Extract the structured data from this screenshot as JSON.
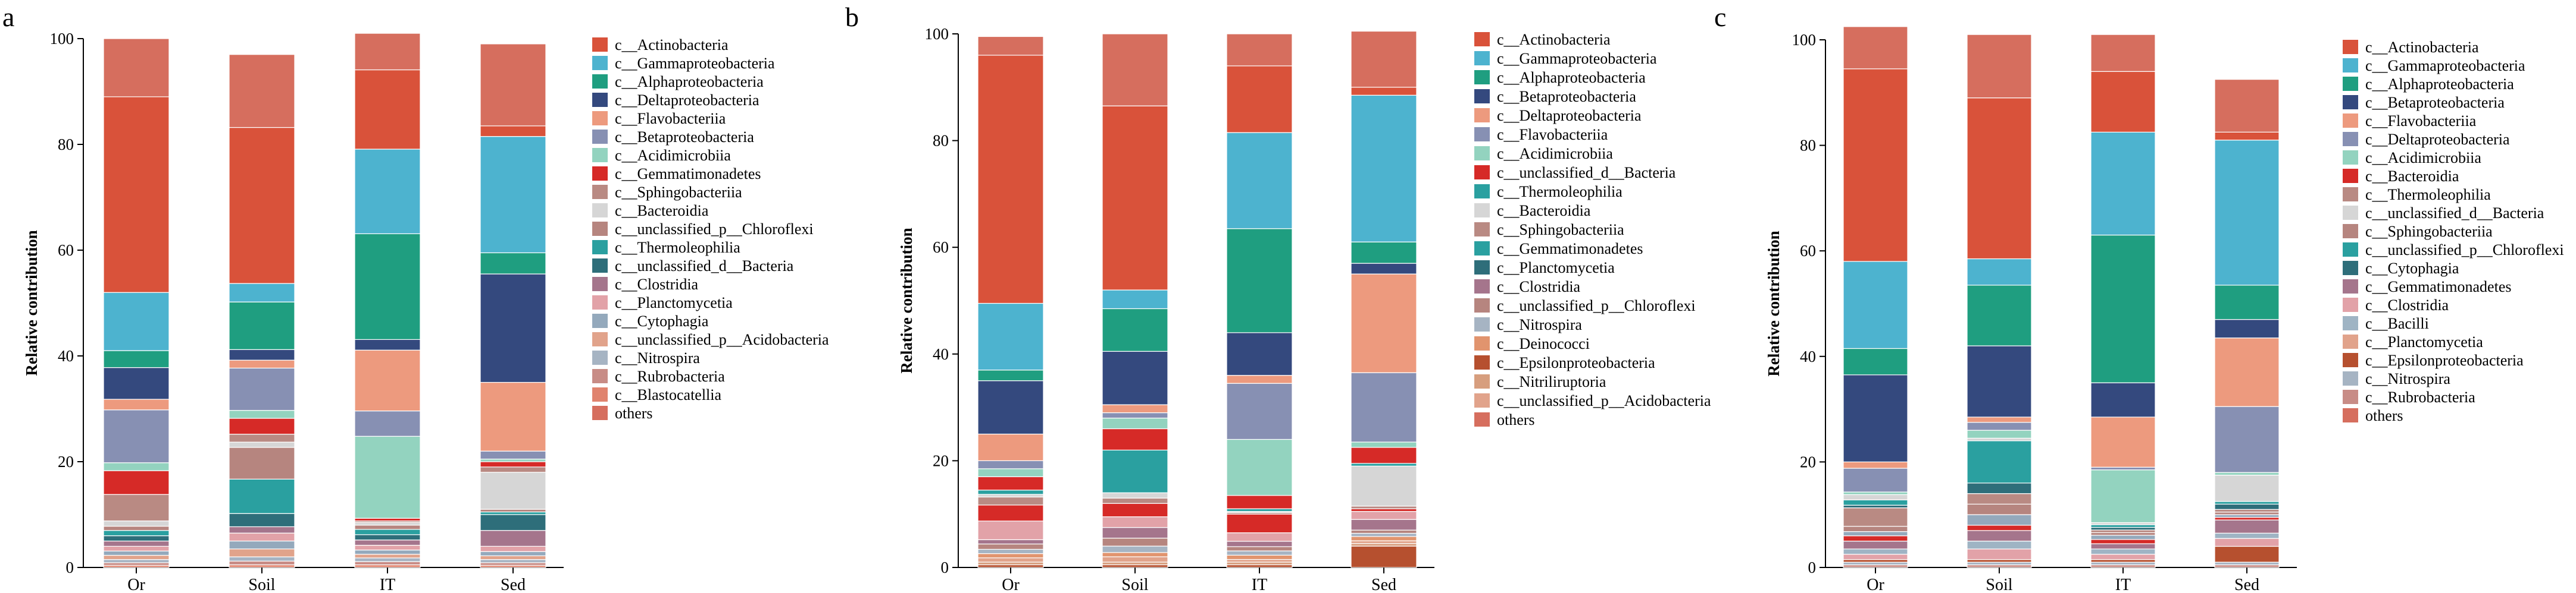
{
  "colors": {
    "Actinobacteria": "#D9523A",
    "Gammaproteobacteria": "#4DB3CF",
    "Alphaproteobacteria": "#1F9E80",
    "Deltaproteobacteria": "#ED9A7E",
    "Betaproteobacteria": "#34497E",
    "Flavobacteriia": "#8790B3",
    "Acidimicrobiia": "#93D3BF",
    "Gemmatimonadetes": "#D62A27",
    "Sphingobacteriia": "#B98A83",
    "Bacteroidia": "#D6D6D6",
    "unclassified_p_Chloroflexi": "#B6857F",
    "Thermoleophilia": "#2AA0A0",
    "unclassified_d_Bacteria": "#2E6E7A",
    "Clostridia": "#A5758C",
    "Planctomycetia": "#E2A2A8",
    "Cytophagia": "#94A9BC",
    "unclassified_p_Acidobacteria": "#E1A38B",
    "Nitrospira": "#A6B4C3",
    "Rubrobacteria": "#C88C86",
    "Blastocatellia": "#E0836E",
    "Deinococci": "#E1946E",
    "Epsilonproteobacteria": "#B6502F",
    "Nitriliruptoria": "#D79E7E",
    "Bacilli": "#9FB4C4",
    "others": "#D66E5E"
  },
  "chart_data": [
    {
      "type": "bar",
      "panel_letter": "a",
      "ylabel": "Relative contribution",
      "ylim": [
        0,
        100
      ],
      "yticks": [
        0,
        20,
        40,
        60,
        80,
        100
      ],
      "categories": [
        "Or",
        "Soil",
        "IT",
        "Sed"
      ],
      "legend_labels": [
        "c__Actinobacteria",
        "c__Gammaproteobacteria",
        "c__Alphaproteobacteria",
        "c__Deltaproteobacteria",
        "c__Flavobacteriia",
        "c__Betaproteobacteria",
        "c__Acidimicrobiia",
        "c__Gemmatimonadetes",
        "c__Sphingobacteriia",
        "c__Bacteroidia",
        "c__unclassified_p__Chloroflexi",
        "c__Thermoleophilia",
        "c__unclassified_d__Bacteria",
        "c__Clostridia",
        "c__Planctomycetia",
        "c__Cytophagia",
        "c__unclassified_p__Acidobacteria",
        "c__Nitrospira",
        "c__Rubrobacteria",
        "c__Blastocatellia",
        "others"
      ],
      "series": [
        {
          "name": "Blastocatellia",
          "color_key": "Blastocatellia",
          "values": [
            0.4,
            0.5,
            0.5,
            0.4
          ]
        },
        {
          "name": "Rubrobacteria",
          "color_key": "Rubrobacteria",
          "values": [
            0.5,
            0.7,
            0.6,
            0.5
          ]
        },
        {
          "name": "Nitrospira",
          "color_key": "Nitrospira",
          "values": [
            0.6,
            0.8,
            0.7,
            0.6
          ]
        },
        {
          "name": "unclassified_p__Acidobacteria",
          "color_key": "unclassified_p_Acidobacteria",
          "values": [
            0.8,
            1.5,
            0.7,
            0.7
          ]
        },
        {
          "name": "Cytophagia",
          "color_key": "Cytophagia",
          "values": [
            0.8,
            1.5,
            0.8,
            0.8
          ]
        },
        {
          "name": "Planctomycetia",
          "color_key": "Planctomycetia",
          "values": [
            0.9,
            1.5,
            0.9,
            1.0
          ]
        },
        {
          "name": "Clostridia",
          "color_key": "Clostridia",
          "values": [
            1.0,
            1.2,
            1.0,
            3.0
          ]
        },
        {
          "name": "unclassified_d__Bacteria",
          "color_key": "unclassified_d_Bacteria",
          "values": [
            1.0,
            2.5,
            1.0,
            3.0
          ]
        },
        {
          "name": "Thermoleophilia",
          "color_key": "Thermoleophilia",
          "values": [
            1.0,
            6.5,
            1.0,
            0.5
          ]
        },
        {
          "name": "unclassified_p__Chloroflexi",
          "color_key": "unclassified_p_Chloroflexi",
          "values": [
            0.8,
            6.0,
            0.8,
            0.5
          ]
        },
        {
          "name": "Bacteroidia",
          "color_key": "Bacteroidia",
          "values": [
            1.0,
            1.0,
            0.5,
            7.0
          ]
        },
        {
          "name": "Sphingobacteriia",
          "color_key": "Sphingobacteriia",
          "values": [
            5.0,
            1.5,
            0.3,
            1.0
          ]
        },
        {
          "name": "Gemmatimonadetes",
          "color_key": "Gemmatimonadetes",
          "values": [
            4.5,
            3.0,
            0.5,
            1.0
          ]
        },
        {
          "name": "Acidimicrobiia",
          "color_key": "Acidimicrobiia",
          "values": [
            1.5,
            1.5,
            15.5,
            0.5
          ]
        },
        {
          "name": "Betaproteobacteria",
          "color_key": "Flavobacteriia",
          "values": [
            10.0,
            8.0,
            4.8,
            1.5
          ]
        },
        {
          "name": "Flavobacteriia",
          "color_key": "Deltaproteobacteria",
          "values": [
            2.0,
            1.5,
            11.5,
            13.0
          ]
        },
        {
          "name": "Deltaproteobacteria",
          "color_key": "Betaproteobacteria",
          "values": [
            6.0,
            2.0,
            2.0,
            20.5
          ]
        },
        {
          "name": "Alphaproteobacteria",
          "color_key": "Alphaproteobacteria",
          "values": [
            3.2,
            9.0,
            20.0,
            4.0
          ]
        },
        {
          "name": "Gammaproteobacteria",
          "color_key": "Gammaproteobacteria",
          "values": [
            11.0,
            3.5,
            16.0,
            22.0
          ]
        },
        {
          "name": "Actinobacteria",
          "color_key": "Actinobacteria",
          "values": [
            37.0,
            29.5,
            15.0,
            2.0
          ]
        },
        {
          "name": "others",
          "color_key": "others",
          "values": [
            11.0,
            13.8,
            6.9,
            15.5
          ]
        }
      ]
    },
    {
      "type": "bar",
      "panel_letter": "b",
      "ylabel": "Relative contribution",
      "ylim": [
        0,
        100
      ],
      "yticks": [
        0,
        20,
        40,
        60,
        80,
        100
      ],
      "categories": [
        "Or",
        "Soil",
        "IT",
        "Sed"
      ],
      "legend_labels": [
        "c__Actinobacteria",
        "c__Gammaproteobacteria",
        "c__Alphaproteobacteria",
        "c__Betaproteobacteria",
        "c__Deltaproteobacteria",
        "c__Flavobacteriia",
        "c__Acidimicrobiia",
        "c__unclassified_d__Bacteria",
        "c__Thermoleophilia",
        "c__Bacteroidia",
        "c__Sphingobacteriia",
        "c__Gemmatimonadetes",
        "c__Planctomycetia",
        "c__Clostridia",
        "c__unclassified_p__Chloroflexi",
        "c__Nitrospira",
        "c__Deinococci",
        "c__Epsilonproteobacteria",
        "c__Nitriliruptoria",
        "c__unclassified_p__Acidobacteria",
        "others"
      ],
      "series": [
        {
          "name": "Epsilonproteobacteria",
          "color_key": "Epsilonproteobacteria",
          "values": [
            0.5,
            0.5,
            0.5,
            4.0
          ]
        },
        {
          "name": "Nitriliruptoria",
          "color_key": "Nitriliruptoria",
          "values": [
            0.5,
            0.5,
            0.5,
            0.5
          ]
        },
        {
          "name": "unclassified_p__Acidobacteria",
          "color_key": "unclassified_p_Acidobacteria",
          "values": [
            0.8,
            1.0,
            0.5,
            0.5
          ]
        },
        {
          "name": "Deinococci",
          "color_key": "Deinococci",
          "values": [
            0.8,
            0.8,
            0.8,
            0.8
          ]
        },
        {
          "name": "Nitrospira",
          "color_key": "Nitrospira",
          "values": [
            0.8,
            1.2,
            0.8,
            0.6
          ]
        },
        {
          "name": "unclassified_p__Chloroflexi",
          "color_key": "unclassified_p_Chloroflexi",
          "values": [
            1.0,
            1.5,
            0.8,
            0.6
          ]
        },
        {
          "name": "Clostridia",
          "color_key": "Clostridia",
          "values": [
            0.8,
            2.0,
            1.0,
            2.0
          ]
        },
        {
          "name": "Planctomycetia",
          "color_key": "Planctomycetia",
          "values": [
            3.5,
            2.0,
            1.6,
            1.5
          ]
        },
        {
          "name": "Gemmatimonadetes",
          "color_key": "Gemmatimonadetes",
          "values": [
            3.0,
            2.5,
            3.5,
            0.5
          ]
        },
        {
          "name": "Sphingobacteriia",
          "color_key": "Sphingobacteriia",
          "values": [
            1.5,
            1.0,
            0.3,
            0.5
          ]
        },
        {
          "name": "Bacteroidia",
          "color_key": "Bacteroidia",
          "values": [
            0.5,
            1.0,
            0.2,
            7.5
          ]
        },
        {
          "name": "Thermoleophilia",
          "color_key": "Thermoleophilia",
          "values": [
            0.8,
            8.0,
            0.5,
            0.5
          ]
        },
        {
          "name": "unclassified_d__Bacteria",
          "color_key": "Gemmatimonadetes",
          "values": [
            2.5,
            4.0,
            2.5,
            3.0
          ]
        },
        {
          "name": "Acidimicrobiia",
          "color_key": "Acidimicrobiia",
          "values": [
            1.5,
            2.0,
            10.5,
            1.0
          ]
        },
        {
          "name": "Flavobacteriia",
          "color_key": "Flavobacteriia",
          "values": [
            1.5,
            1.0,
            10.5,
            13.0
          ]
        },
        {
          "name": "Deltaproteobacteria",
          "color_key": "Deltaproteobacteria",
          "values": [
            5.0,
            1.5,
            1.5,
            18.5
          ]
        },
        {
          "name": "Betaproteobacteria",
          "color_key": "Betaproteobacteria",
          "values": [
            10.0,
            10.0,
            8.0,
            2.0
          ]
        },
        {
          "name": "Alphaproteobacteria",
          "color_key": "Alphaproteobacteria",
          "values": [
            2.0,
            8.0,
            19.5,
            4.0
          ]
        },
        {
          "name": "Gammaproteobacteria",
          "color_key": "Gammaproteobacteria",
          "values": [
            12.5,
            3.5,
            18.0,
            27.5
          ]
        },
        {
          "name": "Actinobacteria",
          "color_key": "Actinobacteria",
          "values": [
            46.5,
            34.5,
            12.5,
            1.5
          ]
        },
        {
          "name": "others",
          "color_key": "others",
          "values": [
            3.5,
            13.5,
            6.0,
            10.5
          ]
        }
      ]
    },
    {
      "type": "bar",
      "panel_letter": "c",
      "ylabel": "Relative contribution",
      "ylim": [
        0,
        100
      ],
      "yticks": [
        0,
        20,
        40,
        60,
        80,
        100
      ],
      "categories": [
        "Or",
        "Soil",
        "IT",
        "Sed"
      ],
      "legend_labels": [
        "c__Actinobacteria",
        "c__Gammaproteobacteria",
        "c__Alphaproteobacteria",
        "c__Betaproteobacteria",
        "c__Flavobacteriia",
        "c__Deltaproteobacteria",
        "c__Acidimicrobiia",
        "c__Bacteroidia",
        "c__Thermoleophilia",
        "c__unclassified_d__Bacteria",
        "c__Sphingobacteriia",
        "c__unclassified_p__Chloroflexi",
        "c__Cytophagia",
        "c__Gemmatimonadetes",
        "c__Clostridia",
        "c__Bacilli",
        "c__Planctomycetia",
        "c__Epsilonproteobacteria",
        "c__Nitrospira",
        "c__Rubrobacteria",
        "others"
      ],
      "series": [
        {
          "name": "Rubrobacteria",
          "color_key": "Rubrobacteria",
          "values": [
            0.5,
            0.5,
            0.5,
            0.5
          ]
        },
        {
          "name": "Nitrospira",
          "color_key": "Nitrospira",
          "values": [
            0.5,
            0.5,
            0.5,
            0.5
          ]
        },
        {
          "name": "Epsilonproteobacteria",
          "color_key": "Epsilonproteobacteria",
          "values": [
            0.5,
            0.5,
            0.5,
            3.0
          ]
        },
        {
          "name": "Planctomycetia",
          "color_key": "Planctomycetia",
          "values": [
            1.0,
            2.0,
            1.0,
            1.5
          ]
        },
        {
          "name": "Bacilli",
          "color_key": "Bacilli",
          "values": [
            1.0,
            1.5,
            1.0,
            1.0
          ]
        },
        {
          "name": "Clostridia",
          "color_key": "Clostridia",
          "values": [
            1.5,
            2.0,
            1.0,
            2.5
          ]
        },
        {
          "name": "Gemmatimonadetes",
          "color_key": "Gemmatimonadetes",
          "values": [
            1.0,
            1.0,
            0.8,
            0.5
          ]
        },
        {
          "name": "Cytophagia",
          "color_key": "Cytophagia",
          "values": [
            0.8,
            2.0,
            0.8,
            0.5
          ]
        },
        {
          "name": "unclassified_p__Chloroflexi",
          "color_key": "unclassified_p_Chloroflexi",
          "values": [
            1.0,
            2.0,
            0.5,
            0.5
          ]
        },
        {
          "name": "Sphingobacteriia",
          "color_key": "Sphingobacteriia",
          "values": [
            3.5,
            2.0,
            0.5,
            0.5
          ]
        },
        {
          "name": "unclassified_d__Bacteria",
          "color_key": "unclassified_d_Bacteria",
          "values": [
            0.5,
            2.0,
            0.5,
            1.0
          ]
        },
        {
          "name": "Thermoleophilia",
          "color_key": "Thermoleophilia",
          "values": [
            1.0,
            8.0,
            0.5,
            0.5
          ]
        },
        {
          "name": "Bacteroidia",
          "color_key": "Bacteroidia",
          "values": [
            1.0,
            0.5,
            0.4,
            5.0
          ]
        },
        {
          "name": "Acidimicrobiia",
          "color_key": "Acidimicrobiia",
          "values": [
            0.5,
            1.5,
            10.0,
            0.5
          ]
        },
        {
          "name": "Deltaproteobacteria",
          "color_key": "Flavobacteriia",
          "values": [
            4.5,
            1.5,
            0.5,
            12.5
          ]
        },
        {
          "name": "Flavobacteriia",
          "color_key": "Deltaproteobacteria",
          "values": [
            1.2,
            1.0,
            9.5,
            13.0
          ]
        },
        {
          "name": "Betaproteobacteria",
          "color_key": "Betaproteobacteria",
          "values": [
            16.5,
            13.5,
            6.5,
            3.5
          ]
        },
        {
          "name": "Alphaproteobacteria",
          "color_key": "Alphaproteobacteria",
          "values": [
            5.0,
            11.5,
            28.0,
            6.5
          ]
        },
        {
          "name": "Gammaproteobacteria",
          "color_key": "Gammaproteobacteria",
          "values": [
            16.5,
            5.0,
            19.5,
            27.5
          ]
        },
        {
          "name": "Actinobacteria",
          "color_key": "Actinobacteria",
          "values": [
            36.5,
            30.5,
            11.5,
            1.5
          ]
        },
        {
          "name": "others",
          "color_key": "others",
          "values": [
            8.0,
            12.0,
            7.0,
            10.0
          ]
        }
      ]
    }
  ]
}
